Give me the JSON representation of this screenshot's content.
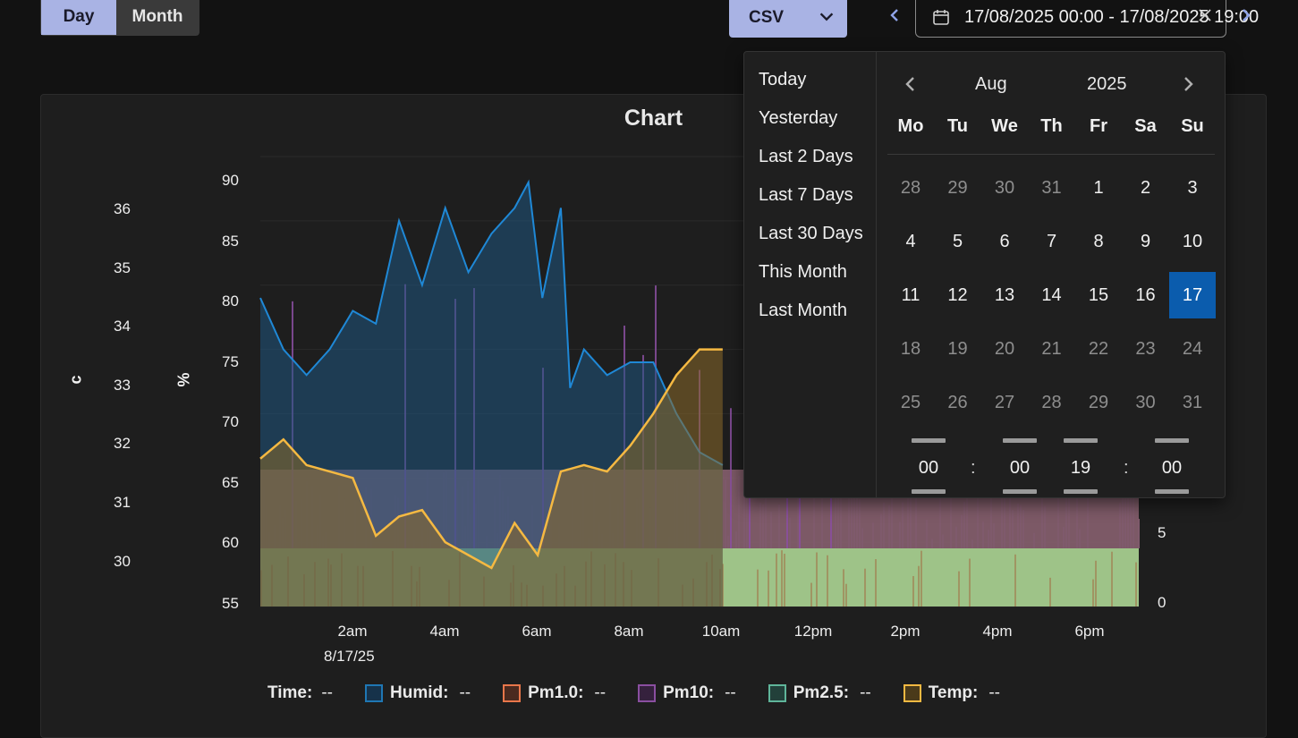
{
  "toolbar": {
    "view_buttons": [
      {
        "label": "Day",
        "active": true
      },
      {
        "label": "Month",
        "active": false
      }
    ],
    "csv_label": "CSV",
    "date_range_text": "17/08/2025 00:00 - 17/08/2025 19:00",
    "icons": {
      "prev": "chevron-left-icon",
      "next": "chevron-right-icon",
      "calendar": "calendar-icon",
      "clear": "close-icon",
      "csv_dropdown": "chevron-down-icon"
    }
  },
  "chart": {
    "title": "Chart",
    "left_axis_title": "c",
    "mid_axis_title": "%",
    "left_axis_ticks": [
      "36",
      "35",
      "34",
      "33",
      "32",
      "31",
      "30"
    ],
    "mid_axis_ticks": [
      "90",
      "85",
      "80",
      "75",
      "70",
      "65",
      "60",
      "55"
    ],
    "right_axis_ticks": [
      "5",
      "0"
    ],
    "x_ticks": [
      "2am",
      "4am",
      "6am",
      "8am",
      "10am",
      "12pm",
      "2pm",
      "4pm",
      "6pm"
    ],
    "x_date": "8/17/25"
  },
  "chart_data": {
    "type": "area",
    "title": "Chart",
    "x_ticks": [
      "2am",
      "4am",
      "6am",
      "8am",
      "10am",
      "12pm",
      "2pm",
      "4pm",
      "6pm"
    ],
    "x_range_hours": [
      0.5,
      19.5
    ],
    "y_axes": [
      {
        "label": "c",
        "range": [
          29.5,
          36.5
        ]
      },
      {
        "label": "%",
        "range": [
          55,
          90
        ]
      }
    ],
    "series": [
      {
        "name": "Humid",
        "axis": "%",
        "color": "#1f77b4",
        "x": [
          0.5,
          1.0,
          1.5,
          2.0,
          2.5,
          3.0,
          3.5,
          4.0,
          4.5,
          5.0,
          5.5,
          6.0,
          6.3,
          6.6,
          7.0,
          7.2,
          7.5,
          8.0,
          8.5,
          9.0,
          9.5,
          10.0,
          10.5
        ],
        "y": [
          79,
          75,
          73,
          75,
          78,
          77,
          85,
          80,
          86,
          81,
          84,
          86,
          88,
          79,
          86,
          72,
          75,
          73,
          74,
          74,
          70,
          67,
          66
        ]
      },
      {
        "name": "Temp",
        "axis": "c",
        "color": "#f5b942",
        "x": [
          0.5,
          1.0,
          1.5,
          2.0,
          2.5,
          3.0,
          3.5,
          4.0,
          4.5,
          5.0,
          5.5,
          6.0,
          6.5,
          7.0,
          7.5,
          8.0,
          8.5,
          9.0,
          9.5,
          10.0,
          10.5
        ],
        "y": [
          31.8,
          32.1,
          31.7,
          31.6,
          31.5,
          30.6,
          30.9,
          31.0,
          30.5,
          30.3,
          30.1,
          30.8,
          30.3,
          31.6,
          31.7,
          31.6,
          32.0,
          32.5,
          33.1,
          33.5,
          33.5
        ]
      }
    ],
    "legend": [
      {
        "label": "Time:",
        "value": "--"
      },
      {
        "label": "Humid:",
        "value": "--",
        "color": "#1f77b4"
      },
      {
        "label": "Pm1.0:",
        "value": "--",
        "color": "#e8764a"
      },
      {
        "label": "Pm10:",
        "value": "--",
        "color": "#8a4fa0"
      },
      {
        "label": "Pm2.5:",
        "value": "--",
        "color": "#5fb59a"
      },
      {
        "label": "Temp:",
        "value": "--",
        "color": "#f5b942"
      }
    ]
  },
  "picker": {
    "ranges": [
      "Today",
      "Yesterday",
      "Last 2 Days",
      "Last 7 Days",
      "Last 30 Days",
      "This Month",
      "Last Month"
    ],
    "month": "Aug",
    "year": "2025",
    "weekdays": [
      "Mo",
      "Tu",
      "We",
      "Th",
      "Fr",
      "Sa",
      "Su"
    ],
    "weeks": [
      [
        {
          "d": "28",
          "m": true
        },
        {
          "d": "29",
          "m": true
        },
        {
          "d": "30",
          "m": true
        },
        {
          "d": "31",
          "m": true
        },
        {
          "d": "1"
        },
        {
          "d": "2"
        },
        {
          "d": "3"
        }
      ],
      [
        {
          "d": "4"
        },
        {
          "d": "5"
        },
        {
          "d": "6"
        },
        {
          "d": "7"
        },
        {
          "d": "8"
        },
        {
          "d": "9"
        },
        {
          "d": "10"
        }
      ],
      [
        {
          "d": "11"
        },
        {
          "d": "12"
        },
        {
          "d": "13"
        },
        {
          "d": "14"
        },
        {
          "d": "15"
        },
        {
          "d": "16"
        },
        {
          "d": "17",
          "sel": true
        }
      ],
      [
        {
          "d": "18",
          "m": true
        },
        {
          "d": "19",
          "m": true
        },
        {
          "d": "20",
          "m": true
        },
        {
          "d": "21",
          "m": true
        },
        {
          "d": "22",
          "m": true
        },
        {
          "d": "23",
          "m": true
        },
        {
          "d": "24",
          "m": true
        }
      ],
      [
        {
          "d": "25",
          "m": true
        },
        {
          "d": "26",
          "m": true
        },
        {
          "d": "27",
          "m": true
        },
        {
          "d": "28",
          "m": true
        },
        {
          "d": "29",
          "m": true
        },
        {
          "d": "30",
          "m": true
        },
        {
          "d": "31",
          "m": true
        }
      ]
    ],
    "time": {
      "start_hour": "00",
      "start_min": "00",
      "end_hour": "19",
      "end_min": "00",
      "separator": ":"
    },
    "colors": {
      "selected": "#0b5cad"
    }
  }
}
